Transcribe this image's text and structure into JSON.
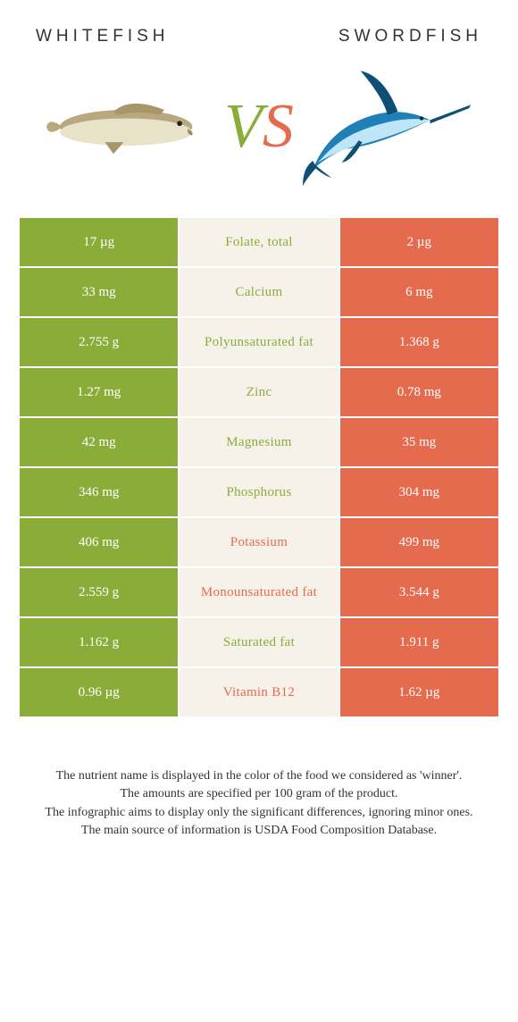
{
  "titles": {
    "left": "WHITEFISH",
    "right": "SWORDFISH"
  },
  "vs": {
    "v": "V",
    "s": "S"
  },
  "colors": {
    "left_bg": "#8aad3a",
    "right_bg": "#e56b4e",
    "mid_bg": "#f6f2ea",
    "left_text": "#8aad3a",
    "right_text": "#e56b4e"
  },
  "rows": [
    {
      "left": "17 µg",
      "label": "Folate, total",
      "right": "2 µg",
      "winner": "left"
    },
    {
      "left": "33 mg",
      "label": "Calcium",
      "right": "6 mg",
      "winner": "left"
    },
    {
      "left": "2.755 g",
      "label": "Polyunsaturated fat",
      "right": "1.368 g",
      "winner": "left"
    },
    {
      "left": "1.27 mg",
      "label": "Zinc",
      "right": "0.78 mg",
      "winner": "left"
    },
    {
      "left": "42 mg",
      "label": "Magnesium",
      "right": "35 mg",
      "winner": "left"
    },
    {
      "left": "346 mg",
      "label": "Phosphorus",
      "right": "304 mg",
      "winner": "left"
    },
    {
      "left": "406 mg",
      "label": "Potassium",
      "right": "499 mg",
      "winner": "right"
    },
    {
      "left": "2.559 g",
      "label": "Monounsaturated fat",
      "right": "3.544 g",
      "winner": "right"
    },
    {
      "left": "1.162 g",
      "label": "Saturated fat",
      "right": "1.911 g",
      "winner": "left"
    },
    {
      "left": "0.96 µg",
      "label": "Vitamin B12",
      "right": "1.62 µg",
      "winner": "right"
    }
  ],
  "footnotes": [
    "The nutrient name is displayed in the color of the food we considered as 'winner'.",
    "The amounts are specified per 100 gram of the product.",
    "The infographic aims to display only the significant differences, ignoring minor ones.",
    "The main source of information is USDA Food Composition Database."
  ]
}
